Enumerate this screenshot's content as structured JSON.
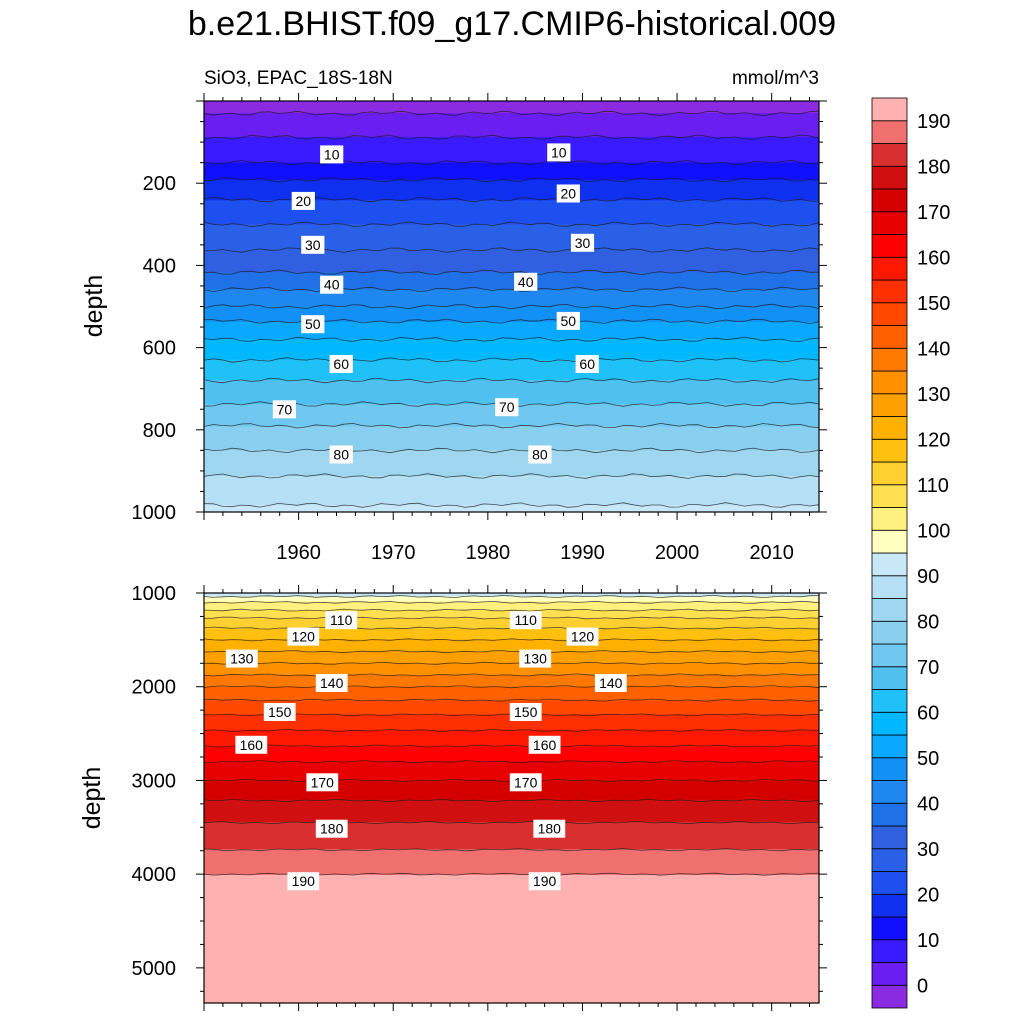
{
  "figure": {
    "title": "b.e21.BHIST.f09_g17.CMIP6-historical.009",
    "subtitle_left": "SiO3, EPAC_18S-18N",
    "subtitle_right": "mmol/m^3"
  },
  "chart_data": [
    {
      "type": "contour",
      "panel": "top",
      "ylabel": "depth",
      "xlabel": "",
      "xlim": [
        1950,
        2015
      ],
      "ylim": [
        1000,
        0
      ],
      "x_ticks": [
        1960,
        1970,
        1980,
        1990,
        2000,
        2010
      ],
      "y_ticks": [
        200,
        400,
        600,
        800,
        1000
      ],
      "contour_interval": 5,
      "depth_profile": [
        [
          0,
          -2
        ],
        [
          30,
          0
        ],
        [
          100,
          6
        ],
        [
          150,
          10
        ],
        [
          200,
          16
        ],
        [
          250,
          21
        ],
        [
          300,
          25
        ],
        [
          350,
          29
        ],
        [
          400,
          33
        ],
        [
          450,
          39
        ],
        [
          500,
          45
        ],
        [
          550,
          52
        ],
        [
          600,
          57
        ],
        [
          650,
          62
        ],
        [
          700,
          67
        ],
        [
          750,
          71
        ],
        [
          800,
          76
        ],
        [
          850,
          80
        ],
        [
          900,
          84
        ],
        [
          950,
          88
        ],
        [
          1000,
          91
        ]
      ],
      "contour_labels": [
        {
          "x": 1963.5,
          "y": 130,
          "text": "10"
        },
        {
          "x": 1987.5,
          "y": 125,
          "text": "10"
        },
        {
          "x": 1960.5,
          "y": 243,
          "text": "20"
        },
        {
          "x": 1988.5,
          "y": 225,
          "text": "20"
        },
        {
          "x": 1961.5,
          "y": 350,
          "text": "30"
        },
        {
          "x": 1990,
          "y": 345,
          "text": "30"
        },
        {
          "x": 1963.5,
          "y": 447,
          "text": "40"
        },
        {
          "x": 1984,
          "y": 440,
          "text": "40"
        },
        {
          "x": 1961.5,
          "y": 543,
          "text": "50"
        },
        {
          "x": 1988.5,
          "y": 535,
          "text": "50"
        },
        {
          "x": 1964.5,
          "y": 640,
          "text": "60"
        },
        {
          "x": 1990.5,
          "y": 640,
          "text": "60"
        },
        {
          "x": 1958.5,
          "y": 750,
          "text": "70"
        },
        {
          "x": 1982,
          "y": 745,
          "text": "70"
        },
        {
          "x": 1964.5,
          "y": 860,
          "text": "80"
        },
        {
          "x": 1985.5,
          "y": 860,
          "text": "80"
        }
      ]
    },
    {
      "type": "contour",
      "panel": "bottom",
      "ylabel": "depth",
      "xlabel": "",
      "xlim": [
        1950,
        2015
      ],
      "ylim": [
        5375,
        1000
      ],
      "x_ticks": [
        1960,
        1970,
        1980,
        1990,
        2000,
        2010
      ],
      "y_ticks": [
        1000,
        2000,
        3000,
        4000,
        5000
      ],
      "contour_interval": 5,
      "depth_profile": [
        [
          1000,
          92
        ],
        [
          1100,
          100
        ],
        [
          1300,
          112
        ],
        [
          1500,
          120
        ],
        [
          1700,
          128
        ],
        [
          2000,
          140
        ],
        [
          2200,
          147
        ],
        [
          2500,
          156
        ],
        [
          2800,
          165
        ],
        [
          3000,
          170
        ],
        [
          3300,
          177
        ],
        [
          3500,
          181
        ],
        [
          3800,
          186
        ],
        [
          4050,
          191
        ],
        [
          4500,
          193
        ],
        [
          5375,
          194
        ]
      ],
      "contour_labels": [
        {
          "x": 1964.5,
          "y": 1290,
          "text": "110"
        },
        {
          "x": 1984,
          "y": 1290,
          "text": "110"
        },
        {
          "x": 1960.5,
          "y": 1465,
          "text": "120"
        },
        {
          "x": 1990,
          "y": 1465,
          "text": "120"
        },
        {
          "x": 1954,
          "y": 1700,
          "text": "130"
        },
        {
          "x": 1985,
          "y": 1700,
          "text": "130"
        },
        {
          "x": 1963.5,
          "y": 1960,
          "text": "140"
        },
        {
          "x": 1993,
          "y": 1960,
          "text": "140"
        },
        {
          "x": 1958,
          "y": 2270,
          "text": "150"
        },
        {
          "x": 1984,
          "y": 2270,
          "text": "150"
        },
        {
          "x": 1955,
          "y": 2620,
          "text": "160"
        },
        {
          "x": 1986,
          "y": 2620,
          "text": "160"
        },
        {
          "x": 1962.5,
          "y": 3020,
          "text": "170"
        },
        {
          "x": 1984,
          "y": 3020,
          "text": "170"
        },
        {
          "x": 1963.5,
          "y": 3515,
          "text": "180"
        },
        {
          "x": 1986.5,
          "y": 3515,
          "text": "180"
        },
        {
          "x": 1960.5,
          "y": 4075,
          "text": "190"
        },
        {
          "x": 1986,
          "y": 4075,
          "text": "190"
        }
      ]
    }
  ],
  "colorbar": {
    "levels": [
      -5,
      0,
      5,
      10,
      15,
      20,
      25,
      30,
      35,
      40,
      45,
      50,
      55,
      60,
      65,
      70,
      75,
      80,
      85,
      90,
      95,
      100,
      105,
      110,
      115,
      120,
      125,
      130,
      135,
      140,
      145,
      150,
      155,
      160,
      165,
      170,
      175,
      180,
      185,
      190,
      195
    ],
    "labels": [
      "0",
      "10",
      "20",
      "30",
      "40",
      "50",
      "60",
      "70",
      "80",
      "90",
      "100",
      "110",
      "120",
      "130",
      "140",
      "150",
      "160",
      "170",
      "180",
      "190"
    ],
    "label_values": [
      0,
      10,
      20,
      30,
      40,
      50,
      60,
      70,
      80,
      90,
      100,
      110,
      120,
      130,
      140,
      150,
      160,
      170,
      180,
      190
    ],
    "colors": [
      "#8a2be2",
      "#6a1ef0",
      "#3a1aff",
      "#1010ff",
      "#1030f0",
      "#1e50f0",
      "#2a60e8",
      "#3060e0",
      "#2070e8",
      "#1e88f0",
      "#1290f5",
      "#0aa8ff",
      "#00b8ff",
      "#20c0f8",
      "#50c0f0",
      "#70c8f0",
      "#88cff0",
      "#9fd6f0",
      "#b5e0f5",
      "#c8e8f8",
      "#ffffc0",
      "#fff080",
      "#ffe050",
      "#ffd030",
      "#ffc010",
      "#ffb000",
      "#ffa000",
      "#ff9000",
      "#ff7800",
      "#ff6000",
      "#ff4800",
      "#ff3000",
      "#ff1800",
      "#ff0000",
      "#e80000",
      "#d40000",
      "#d01010",
      "#d83030",
      "#f07070",
      "#ffb0b0"
    ]
  }
}
